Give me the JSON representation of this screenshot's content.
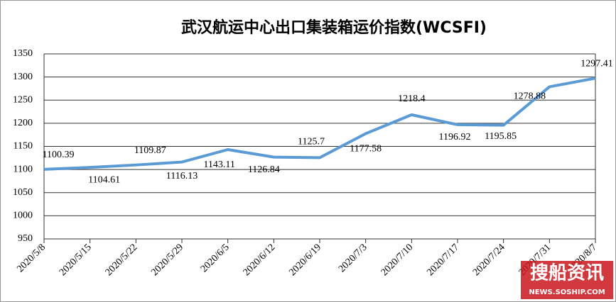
{
  "chart_data": {
    "type": "line",
    "title": "武汉航运中心出口集装箱运价指数(WCSFI)",
    "categories": [
      "2020/5/8",
      "2020/5/15",
      "2020/5/22",
      "2020/5/29",
      "2020/6/5",
      "2020/6/12",
      "2020/6/19",
      "2020/7/3",
      "2020/7/10",
      "2020/7/17",
      "2020/7/24",
      "2020/7/31",
      "2020/8/7"
    ],
    "series": [
      {
        "name": "WCSFI",
        "color": "#5b9bd5",
        "values": [
          1100.39,
          1104.61,
          1109.87,
          1116.13,
          1143.11,
          1126.84,
          1125.7,
          1177.58,
          1218.4,
          1196.92,
          1195.85,
          1278.88,
          1297.41
        ]
      }
    ],
    "ylim": [
      950,
      1350
    ],
    "yticks": [
      950,
      1000,
      1050,
      1100,
      1150,
      1200,
      1250,
      1300,
      1350
    ],
    "grid": true,
    "watermark": {
      "name": "搜船资讯",
      "site": "NEWS.SOSHIP.COM"
    }
  }
}
